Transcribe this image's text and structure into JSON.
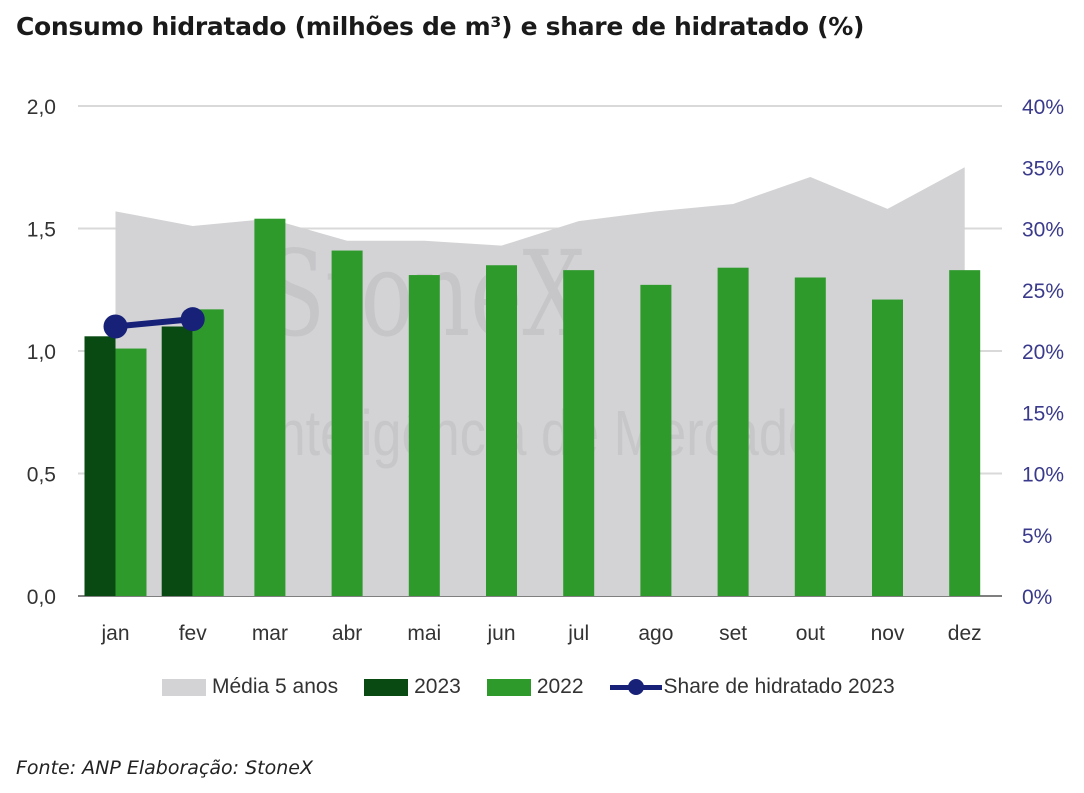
{
  "title": "Consumo hidratado (milhões de m³) e share de hidratado (%)",
  "source": "Fonte: ANP Elaboração: StoneX",
  "watermark": {
    "brand": "StoneX",
    "tagline": "Inteligência de Mercado"
  },
  "colors": {
    "media": "#d3d3d5",
    "y2023": "#084a12",
    "y2022": "#2e9a2c",
    "share": "#172178",
    "grid": "#d9d9d9",
    "left_tick": "#333333",
    "right_tick": "#3a3a8c"
  },
  "chart_data": {
    "type": "bar",
    "categories": [
      "jan",
      "fev",
      "mar",
      "abr",
      "mai",
      "jun",
      "jul",
      "ago",
      "set",
      "out",
      "nov",
      "dez"
    ],
    "series": [
      {
        "name": "Média 5 anos",
        "kind": "area",
        "values": [
          1.57,
          1.51,
          1.54,
          1.45,
          1.45,
          1.43,
          1.53,
          1.57,
          1.6,
          1.71,
          1.58,
          1.75
        ]
      },
      {
        "name": "2023",
        "kind": "bar",
        "values": [
          1.06,
          1.1,
          null,
          null,
          null,
          null,
          null,
          null,
          null,
          null,
          null,
          null
        ]
      },
      {
        "name": "2022",
        "kind": "bar",
        "values": [
          1.01,
          1.17,
          1.54,
          1.41,
          1.31,
          1.35,
          1.33,
          1.27,
          1.34,
          1.3,
          1.21,
          1.33
        ]
      },
      {
        "name": "Share de hidratado 2023",
        "kind": "line",
        "axis": "right",
        "values": [
          22.0,
          22.6,
          null,
          null,
          null,
          null,
          null,
          null,
          null,
          null,
          null,
          null
        ]
      }
    ],
    "ylim": [
      0,
      2.0
    ],
    "yticks": [
      "0,0",
      "0,5",
      "1,0",
      "1,5",
      "2,0"
    ],
    "y2lim": [
      0,
      40
    ],
    "y2ticks": [
      "0%",
      "5%",
      "10%",
      "15%",
      "20%",
      "25%",
      "30%",
      "35%",
      "40%"
    ],
    "grid": true,
    "legend": "bottom"
  }
}
